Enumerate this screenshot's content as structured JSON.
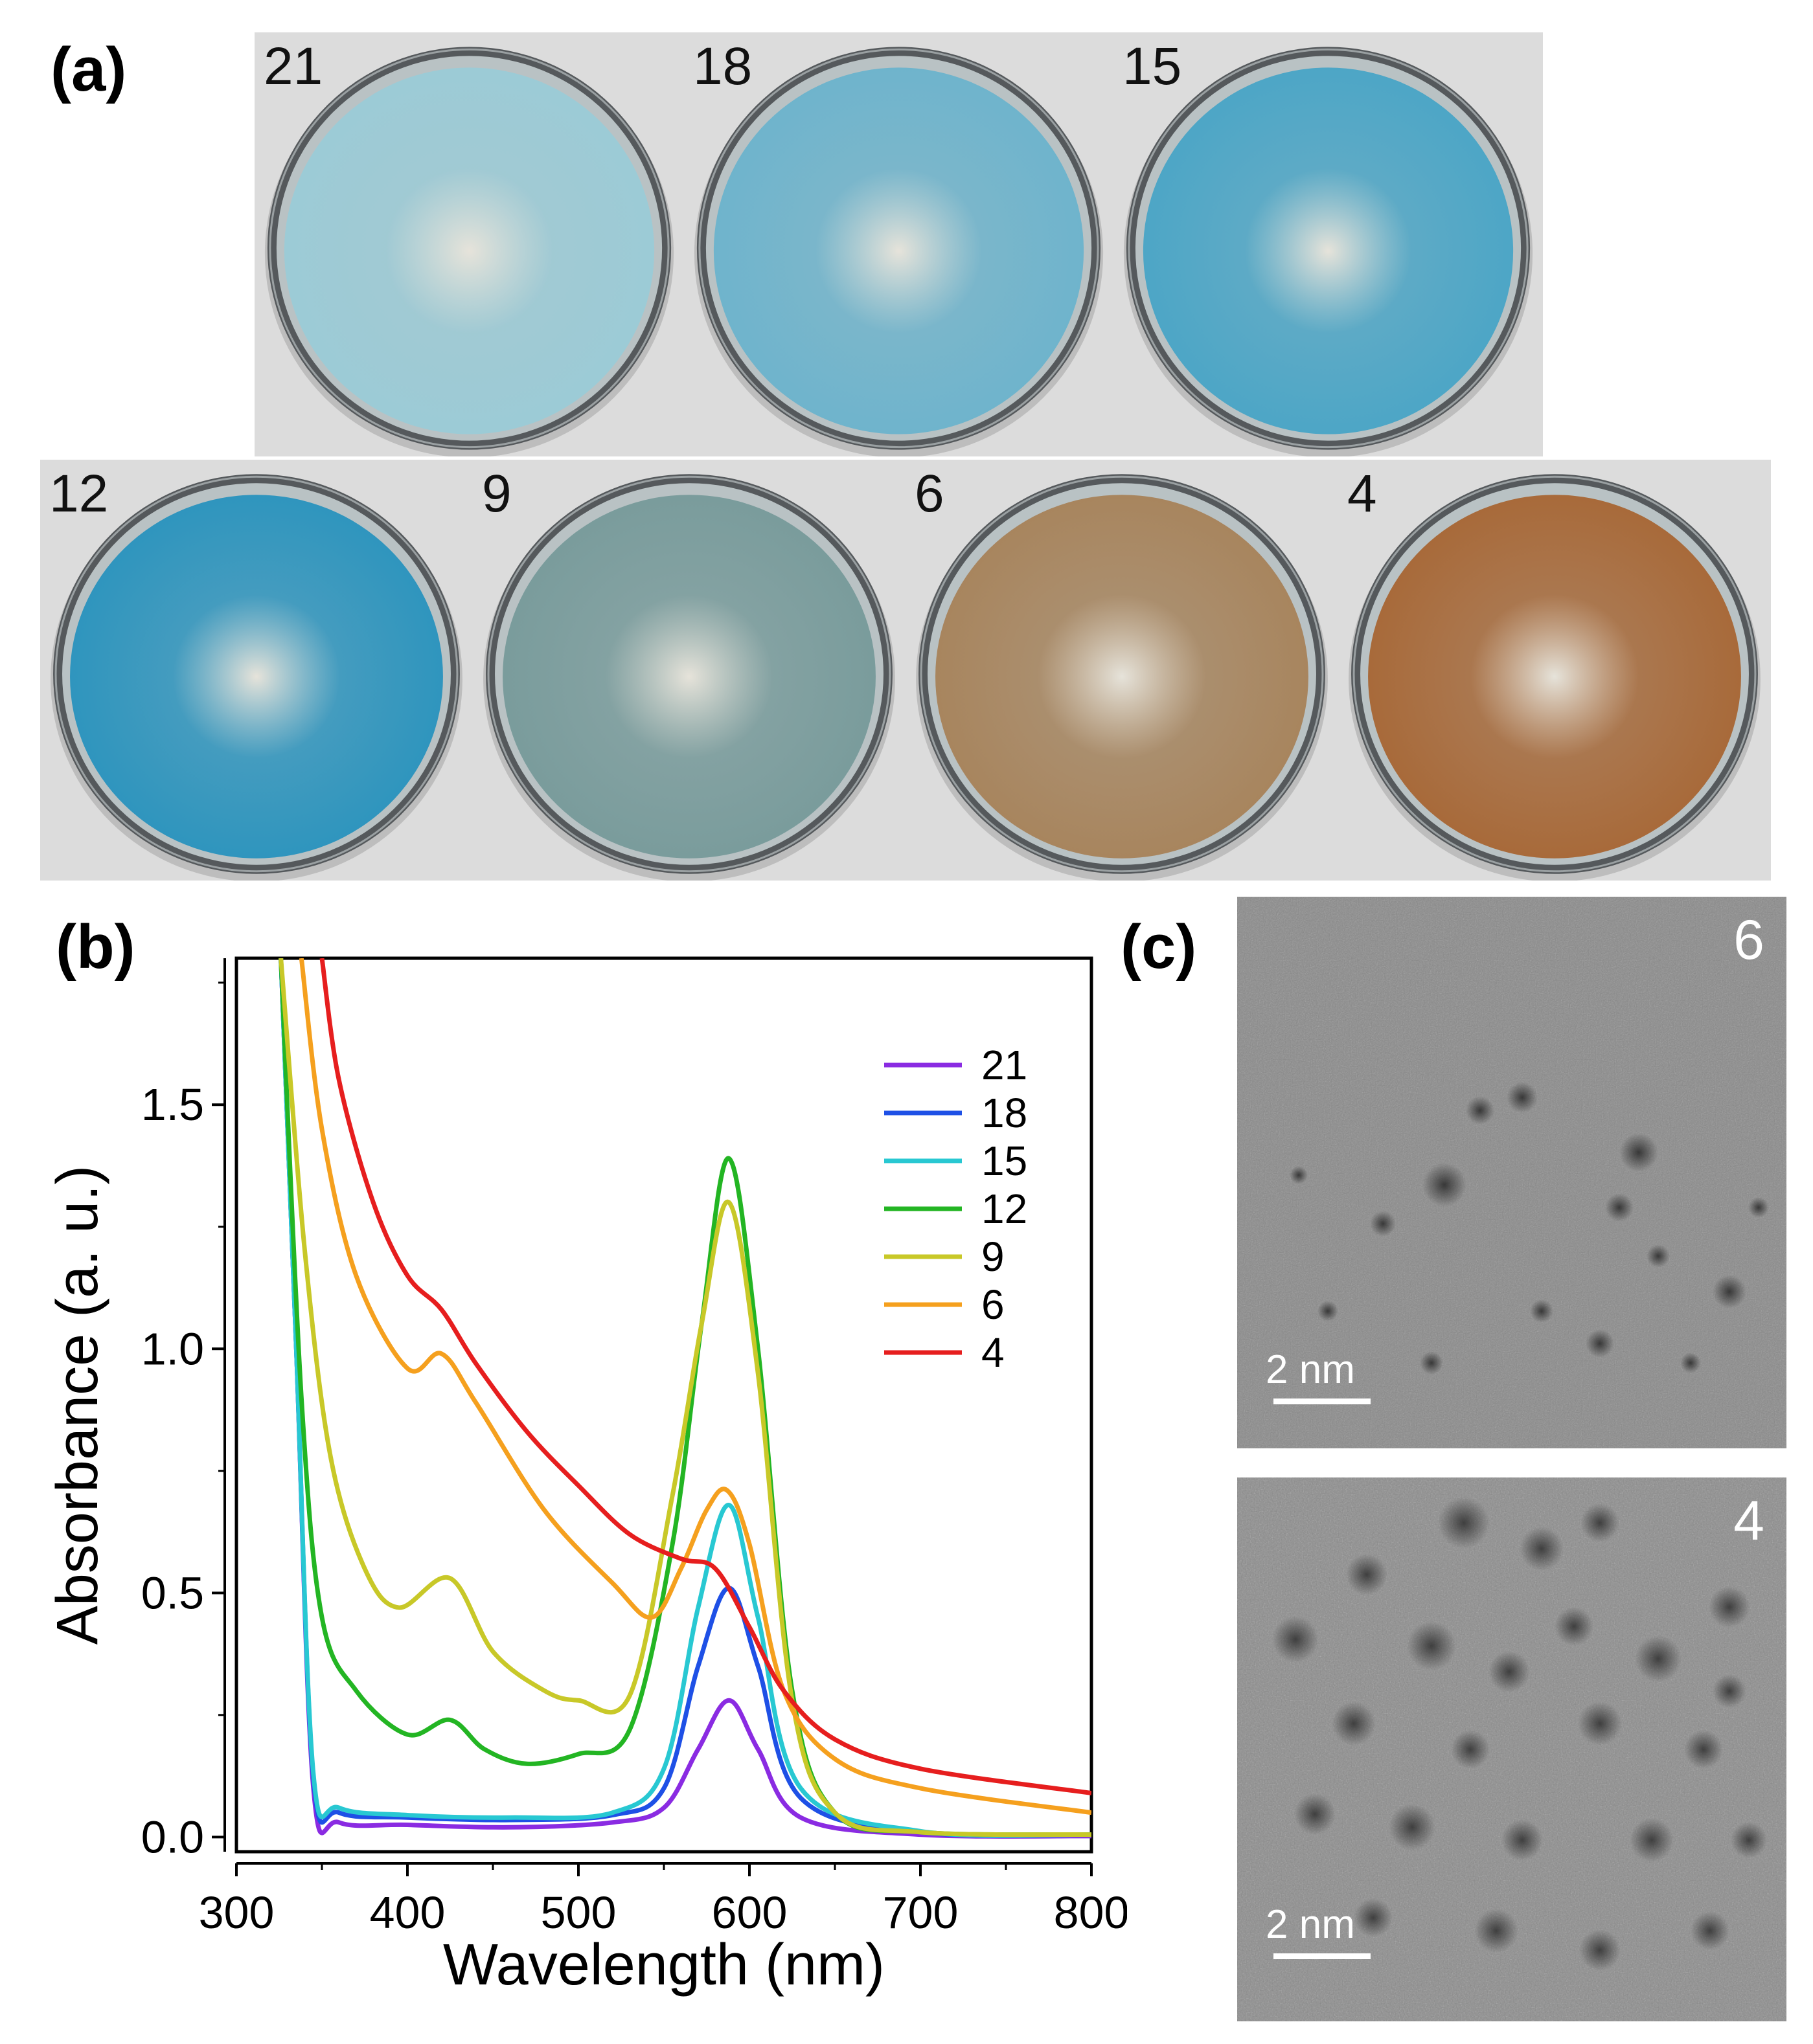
{
  "figure": {
    "panel_a_label": "(a)",
    "panel_b_label": "(b)",
    "panel_c_label": "(c)",
    "dishes_row1": [
      {
        "label": "21",
        "liquid": "#9ccbd6",
        "rim": "#55595c"
      },
      {
        "label": "18",
        "liquid": "#6fb4cc",
        "rim": "#55595c"
      },
      {
        "label": "15",
        "liquid": "#4da6c6",
        "rim": "#55595c"
      },
      {
        "label": "12",
        "liquid": "#2f95be",
        "rim": "#55595c"
      }
    ],
    "dishes_row2": [
      {
        "label": "9",
        "liquid": "#7a9c9c",
        "rim": "#55595c"
      },
      {
        "label": "6",
        "liquid": "#a8855e",
        "rim": "#55595c"
      },
      {
        "label": "4",
        "liquid": "#a86a3a",
        "rim": "#55595c"
      }
    ],
    "tem_images": [
      {
        "label": "6",
        "scale_text": "2 nm"
      },
      {
        "label": "4",
        "scale_text": "2 nm"
      }
    ]
  },
  "chart_data": {
    "type": "line",
    "xlabel": "Wavelength (nm)",
    "ylabel": "Absorbance (a. u.)",
    "xlim": [
      300,
      800
    ],
    "ylim": [
      -0.03,
      1.8
    ],
    "xticks": [
      300,
      400,
      500,
      600,
      700,
      800
    ],
    "yticks": [
      0.0,
      0.5,
      1.0,
      1.5
    ],
    "ytick_labels": [
      "0.0",
      "0.5",
      "1.0",
      "1.5"
    ],
    "legend_position": "top-right",
    "series": [
      {
        "name": "21",
        "color": "#8a2be2",
        "x": [
          326,
          335,
          345,
          360,
          400,
          460,
          520,
          550,
          570,
          588,
          605,
          630,
          700,
          800
        ],
        "y": [
          1.8,
          1.0,
          0.1,
          0.03,
          0.025,
          0.02,
          0.03,
          0.06,
          0.18,
          0.28,
          0.18,
          0.04,
          0.005,
          0.002
        ]
      },
      {
        "name": "18",
        "color": "#1e50e6",
        "x": [
          326,
          335,
          345,
          360,
          400,
          460,
          520,
          550,
          570,
          588,
          605,
          630,
          700,
          800
        ],
        "y": [
          1.8,
          1.0,
          0.12,
          0.05,
          0.04,
          0.035,
          0.045,
          0.1,
          0.35,
          0.51,
          0.35,
          0.08,
          0.01,
          0.005
        ]
      },
      {
        "name": "15",
        "color": "#28c8d2",
        "x": [
          326,
          335,
          345,
          360,
          400,
          460,
          520,
          550,
          570,
          588,
          605,
          630,
          700,
          800
        ],
        "y": [
          1.8,
          1.0,
          0.13,
          0.06,
          0.045,
          0.04,
          0.05,
          0.14,
          0.47,
          0.68,
          0.45,
          0.1,
          0.012,
          0.005
        ]
      },
      {
        "name": "12",
        "color": "#23b523",
        "x": [
          326,
          338,
          350,
          370,
          400,
          425,
          445,
          470,
          500,
          530,
          555,
          572,
          588,
          605,
          625,
          650,
          700,
          800
        ],
        "y": [
          1.8,
          0.9,
          0.45,
          0.3,
          0.21,
          0.24,
          0.18,
          0.15,
          0.17,
          0.22,
          0.6,
          1.05,
          1.39,
          1.0,
          0.3,
          0.05,
          0.01,
          0.005
        ]
      },
      {
        "name": "9",
        "color": "#c8c828",
        "x": [
          326,
          340,
          355,
          375,
          395,
          425,
          450,
          480,
          500,
          530,
          555,
          572,
          588,
          605,
          625,
          650,
          700,
          800
        ],
        "y": [
          1.8,
          1.2,
          0.78,
          0.55,
          0.47,
          0.53,
          0.38,
          0.3,
          0.28,
          0.29,
          0.7,
          1.05,
          1.3,
          0.95,
          0.28,
          0.05,
          0.01,
          0.005
        ]
      },
      {
        "name": "6",
        "color": "#f5a01e",
        "x": [
          338,
          350,
          370,
          400,
          420,
          440,
          480,
          520,
          543,
          560,
          575,
          587,
          600,
          620,
          650,
          700,
          800
        ],
        "y": [
          1.8,
          1.45,
          1.15,
          0.96,
          0.99,
          0.89,
          0.67,
          0.52,
          0.45,
          0.55,
          0.67,
          0.71,
          0.6,
          0.3,
          0.16,
          0.1,
          0.05
        ]
      },
      {
        "name": "4",
        "color": "#e61e1e",
        "x": [
          350,
          360,
          380,
          400,
          420,
          440,
          470,
          500,
          530,
          560,
          580,
          600,
          620,
          650,
          700,
          800
        ],
        "y": [
          1.8,
          1.55,
          1.3,
          1.15,
          1.08,
          0.97,
          0.83,
          0.72,
          0.62,
          0.57,
          0.55,
          0.43,
          0.3,
          0.2,
          0.14,
          0.09
        ]
      }
    ]
  }
}
